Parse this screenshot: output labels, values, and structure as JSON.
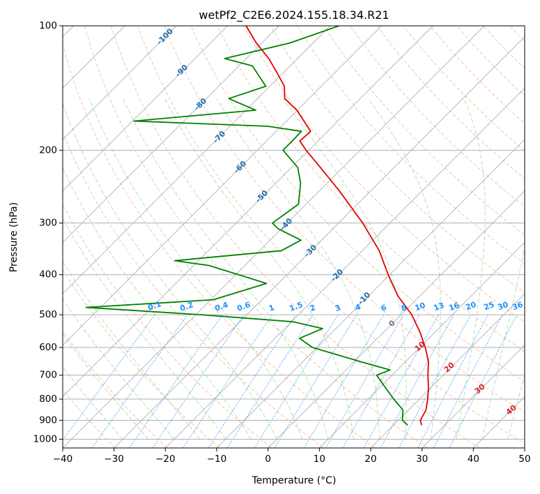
{
  "chart_data": {
    "type": "line",
    "subtype": "skew-t log-p diagram",
    "title": "wetPf2_C2E6.2024.155.18.34.R21",
    "xlabel": "Temperature (°C)",
    "ylabel": "Pressure (hPa)",
    "xlim": [
      -40,
      50
    ],
    "ylim_hpa": [
      1050,
      100
    ],
    "x_ticks": [
      -40,
      -30,
      -20,
      -10,
      0,
      10,
      20,
      30,
      40,
      50
    ],
    "x_tick_labels": [
      "−40",
      "−30",
      "−20",
      "−10",
      "0",
      "10",
      "20",
      "30",
      "40",
      "50"
    ],
    "y_ticks": [
      100,
      200,
      300,
      400,
      500,
      600,
      700,
      800,
      900,
      1000
    ],
    "y_tick_labels": [
      "100",
      "200",
      "300",
      "400",
      "500",
      "600",
      "700",
      "800",
      "900",
      "1000"
    ],
    "grid": true,
    "colors": {
      "temperature": "#e00000",
      "dewpoint": "#008000",
      "isotherm_label": "#1f6fb0",
      "mixing_ratio": "#1e90ff",
      "moist_adiabat_label": "#d62728",
      "dry_adiabat": "#f4a582",
      "moist_adiabat": "#a6d8a6",
      "skewed_isotherm": "#b0b0b0",
      "grid": "#b0b0b0"
    },
    "isotherm_labels": [
      "-100",
      "-90",
      "-80",
      "-70",
      "-60",
      "-50",
      "-40",
      "-30",
      "-20",
      "-10",
      "0"
    ],
    "mixing_ratio_labels": [
      "0.1",
      "0.2",
      "0.4",
      "0.6",
      "1",
      "1.5",
      "2",
      "3",
      "4",
      "6",
      "8",
      "10",
      "13",
      "16",
      "20",
      "25",
      "30",
      "36"
    ],
    "moist_adiabat_labels": [
      "10",
      "20",
      "30",
      "40"
    ],
    "series": [
      {
        "name": "Temperature",
        "color": "#e00000",
        "points": [
          {
            "p": 925,
            "t": 25.5
          },
          {
            "p": 900,
            "t": 24.3
          },
          {
            "p": 850,
            "t": 23.4
          },
          {
            "p": 800,
            "t": 21.6
          },
          {
            "p": 750,
            "t": 19.5
          },
          {
            "p": 700,
            "t": 17.0
          },
          {
            "p": 650,
            "t": 14.5
          },
          {
            "p": 600,
            "t": 11.1
          },
          {
            "p": 550,
            "t": 7.0
          },
          {
            "p": 500,
            "t": 2.1
          },
          {
            "p": 450,
            "t": -4.3
          },
          {
            "p": 400,
            "t": -10.3
          },
          {
            "p": 350,
            "t": -16.7
          },
          {
            "p": 300,
            "t": -25.3
          },
          {
            "p": 250,
            "t": -36.3
          },
          {
            "p": 220,
            "t": -44.4
          },
          {
            "p": 200,
            "t": -50.5
          },
          {
            "p": 190,
            "t": -53.5
          },
          {
            "p": 180,
            "t": -53.3
          },
          {
            "p": 170,
            "t": -56.6
          },
          {
            "p": 160,
            "t": -60.1
          },
          {
            "p": 150,
            "t": -64.7
          },
          {
            "p": 140,
            "t": -67.2
          },
          {
            "p": 130,
            "t": -71.2
          },
          {
            "p": 120,
            "t": -75.6
          },
          {
            "p": 110,
            "t": -81.1
          },
          {
            "p": 100,
            "t": -86.4
          }
        ]
      },
      {
        "name": "Dewpoint",
        "color": "#008000",
        "points": [
          {
            "p": 925,
            "t": 22.8
          },
          {
            "p": 900,
            "t": 20.8
          },
          {
            "p": 850,
            "t": 18.9
          },
          {
            "p": 800,
            "t": 15.0
          },
          {
            "p": 750,
            "t": 11.1
          },
          {
            "p": 700,
            "t": 7.0
          },
          {
            "p": 680,
            "t": 8.6
          },
          {
            "p": 650,
            "t": 1.4
          },
          {
            "p": 600,
            "t": -10.9
          },
          {
            "p": 570,
            "t": -15.2
          },
          {
            "p": 540,
            "t": -12.6
          },
          {
            "p": 520,
            "t": -19.6
          },
          {
            "p": 500,
            "t": -38.9
          },
          {
            "p": 480,
            "t": -62.8
          },
          {
            "p": 460,
            "t": -39.5
          },
          {
            "p": 420,
            "t": -32.3
          },
          {
            "p": 380,
            "t": -47.0
          },
          {
            "p": 370,
            "t": -54.6
          },
          {
            "p": 350,
            "t": -35.8
          },
          {
            "p": 330,
            "t": -34.0
          },
          {
            "p": 310,
            "t": -40.6
          },
          {
            "p": 300,
            "t": -42.9
          },
          {
            "p": 270,
            "t": -41.5
          },
          {
            "p": 240,
            "t": -45.2
          },
          {
            "p": 220,
            "t": -48.8
          },
          {
            "p": 200,
            "t": -55.0
          },
          {
            "p": 190,
            "t": -55.0
          },
          {
            "p": 180,
            "t": -55.1
          },
          {
            "p": 175,
            "t": -62.6
          },
          {
            "p": 170,
            "t": -89.7
          },
          {
            "p": 160,
            "t": -68.1
          },
          {
            "p": 150,
            "t": -75.6
          },
          {
            "p": 140,
            "t": -70.8
          },
          {
            "p": 125,
            "t": -77.4
          },
          {
            "p": 120,
            "t": -84.2
          },
          {
            "p": 110,
            "t": -74.5
          },
          {
            "p": 100,
            "t": -68.3
          }
        ]
      }
    ]
  }
}
